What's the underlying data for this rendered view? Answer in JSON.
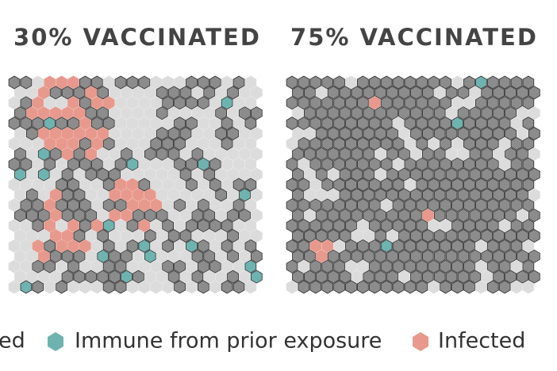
{
  "panels": [
    {
      "title": "30% VACCINATED"
    },
    {
      "title": "75% VACCINATED"
    }
  ],
  "legend": [
    {
      "label": "ed"
    },
    {
      "label": "Immune from prior exposure"
    },
    {
      "label": "Infected"
    }
  ]
}
